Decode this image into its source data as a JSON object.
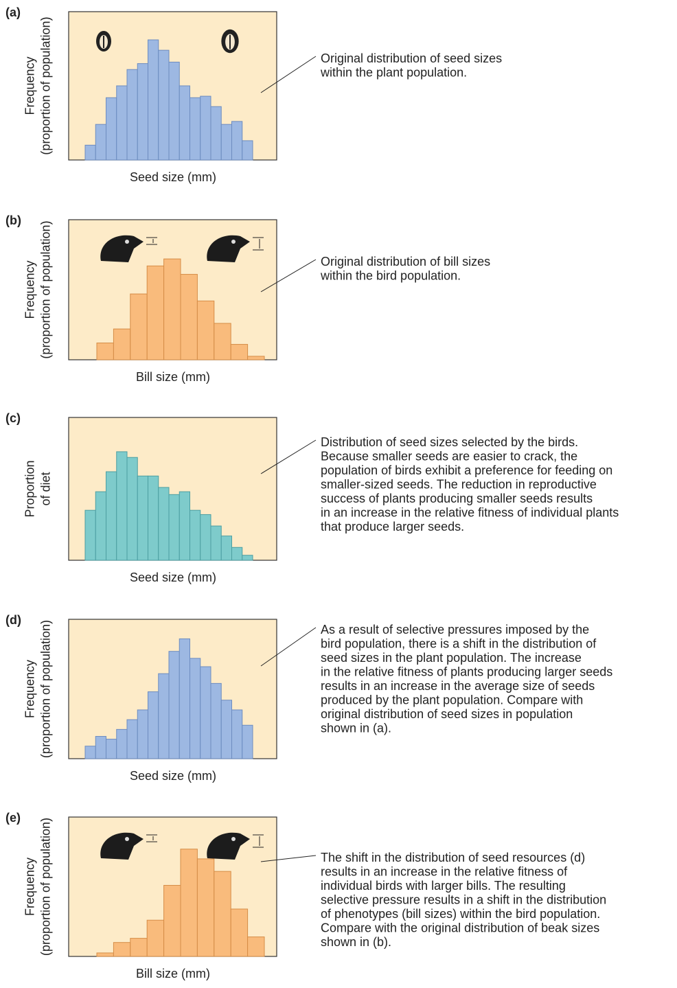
{
  "chart_data": [
    {
      "type": "bar",
      "panel": "(a)",
      "y_label": [
        "Frequency",
        "(proportion of population)"
      ],
      "x_label": "Seed size (mm)",
      "annotation": [
        "Original distribution of seed sizes",
        "within the plant population."
      ],
      "values": [
        10,
        24,
        42,
        50,
        61,
        65,
        81,
        74,
        66,
        50,
        42,
        43,
        36,
        24,
        26,
        13
      ],
      "color": "#9db8e2",
      "ylim": [
        0,
        100
      ]
    },
    {
      "type": "bar",
      "panel": "(b)",
      "y_label": [
        "Frequency",
        "(proportion of population)"
      ],
      "x_label": "Bill size (mm)",
      "annotation": [
        "Original distribution of bill sizes",
        "within the bird population."
      ],
      "values": [
        12,
        22,
        47,
        67,
        72,
        61,
        42,
        26,
        11,
        2.5
      ],
      "color": "#f9bb7c",
      "ylim": [
        0,
        100
      ]
    },
    {
      "type": "bar",
      "panel": "(c)",
      "y_label": [
        "Proportion",
        "of diet"
      ],
      "x_label": "Seed size (mm)",
      "annotation": [
        "Distribution of seed sizes selected by the birds.",
        "Because smaller seeds are easier to crack, the",
        "population of birds exhibit a preference for feeding on",
        "smaller-sized seeds. The reduction in reproductive",
        "success of plants producing smaller seeds results",
        "in an increase in the relative fitness of individual plants",
        "that produce larger seeds."
      ],
      "values": [
        35,
        48,
        62,
        76,
        72,
        59,
        59,
        51,
        46,
        48,
        35,
        32,
        24,
        17,
        9,
        3.5
      ],
      "color": "#7ecbcb",
      "ylim": [
        0,
        100
      ]
    },
    {
      "type": "bar",
      "panel": "(d)",
      "y_label": [
        "Frequency",
        "(proportion of population)"
      ],
      "x_label": "Seed size (mm)",
      "annotation": [
        "As a result of selective pressures imposed by the",
        "bird population, there is a shift in the distribution of",
        "seed sizes in the plant population. The increase",
        "in the relative fitness of plants producing larger seeds",
        "results in an increase in the average size of seeds",
        "produced by the plant population. Compare with",
        "original distribution of seed sizes in population",
        "shown in (a)."
      ],
      "values": [
        9,
        16,
        14,
        21,
        28,
        35,
        48,
        61,
        77,
        86,
        72,
        66,
        54,
        42,
        35,
        24
      ],
      "color": "#9db8e2",
      "ylim": [
        0,
        100
      ]
    },
    {
      "type": "bar",
      "panel": "(e)",
      "y_label": [
        "Frequency",
        "(proportion of population)"
      ],
      "x_label": "Bill size (mm)",
      "annotation": [
        "The shift in the distribution of seed resources (d)",
        "results in an increase in the relative fitness of",
        "individual birds with larger bills. The resulting",
        "selective pressure results in a shift in the distribution",
        "of phenotypes (bill sizes) within the bird population.",
        "Compare with the original distribution of beak sizes",
        "shown in (b)."
      ],
      "values": [
        2.5,
        10,
        13,
        26,
        51,
        77,
        70,
        61,
        34,
        14
      ],
      "color": "#f9bb7c",
      "ylim": [
        0,
        100
      ]
    }
  ]
}
